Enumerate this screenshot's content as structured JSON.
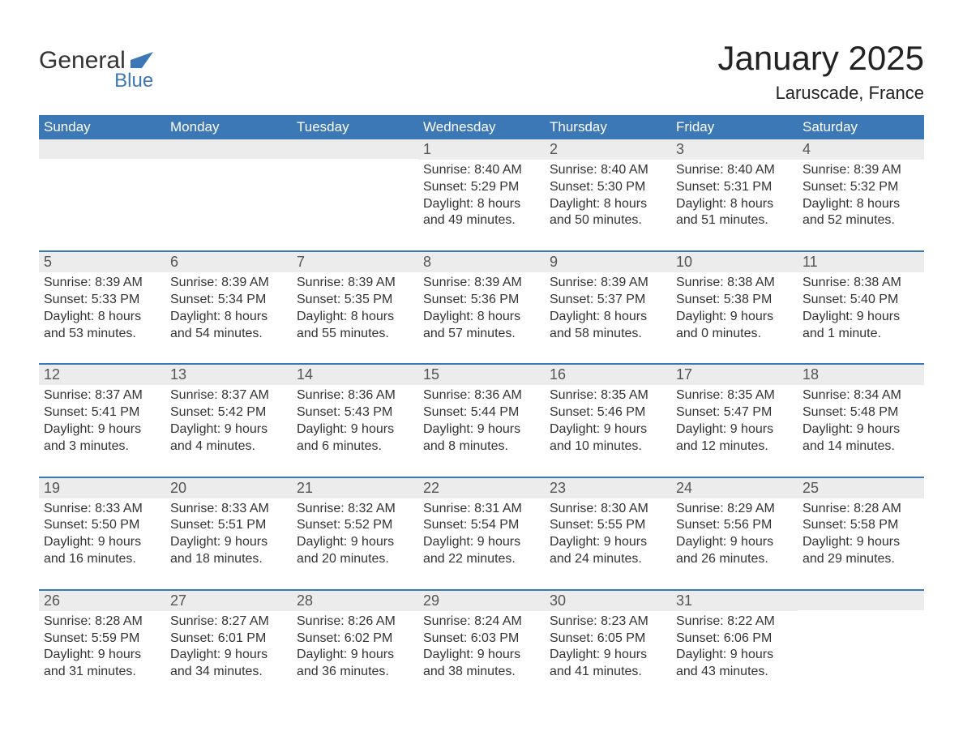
{
  "colors": {
    "brand_blue": "#3b78b5",
    "header_blue": "#3b78b5",
    "row_top_border": "#3b78b5",
    "day_strip_bg": "#ececec",
    "text_dark": "#333333",
    "page_bg": "#ffffff"
  },
  "typography": {
    "title_fontsize_pt": 32,
    "subtitle_fontsize_pt": 17,
    "weekday_fontsize_pt": 13,
    "daynum_fontsize_pt": 14,
    "body_fontsize_pt": 12,
    "font_family": "Arial"
  },
  "logo": {
    "word1": "General",
    "word2": "Blue",
    "icon_name": "flag-icon"
  },
  "header": {
    "title": "January 2025",
    "location": "Laruscade, France"
  },
  "calendar": {
    "type": "calendar-grid",
    "columns": 7,
    "rows": 5,
    "weekdays": [
      "Sunday",
      "Monday",
      "Tuesday",
      "Wednesday",
      "Thursday",
      "Friday",
      "Saturday"
    ],
    "weeks": [
      [
        {
          "day": "",
          "sunrise": "",
          "sunset": "",
          "daylight1": "",
          "daylight2": ""
        },
        {
          "day": "",
          "sunrise": "",
          "sunset": "",
          "daylight1": "",
          "daylight2": ""
        },
        {
          "day": "",
          "sunrise": "",
          "sunset": "",
          "daylight1": "",
          "daylight2": ""
        },
        {
          "day": "1",
          "sunrise": "Sunrise: 8:40 AM",
          "sunset": "Sunset: 5:29 PM",
          "daylight1": "Daylight: 8 hours",
          "daylight2": "and 49 minutes."
        },
        {
          "day": "2",
          "sunrise": "Sunrise: 8:40 AM",
          "sunset": "Sunset: 5:30 PM",
          "daylight1": "Daylight: 8 hours",
          "daylight2": "and 50 minutes."
        },
        {
          "day": "3",
          "sunrise": "Sunrise: 8:40 AM",
          "sunset": "Sunset: 5:31 PM",
          "daylight1": "Daylight: 8 hours",
          "daylight2": "and 51 minutes."
        },
        {
          "day": "4",
          "sunrise": "Sunrise: 8:39 AM",
          "sunset": "Sunset: 5:32 PM",
          "daylight1": "Daylight: 8 hours",
          "daylight2": "and 52 minutes."
        }
      ],
      [
        {
          "day": "5",
          "sunrise": "Sunrise: 8:39 AM",
          "sunset": "Sunset: 5:33 PM",
          "daylight1": "Daylight: 8 hours",
          "daylight2": "and 53 minutes."
        },
        {
          "day": "6",
          "sunrise": "Sunrise: 8:39 AM",
          "sunset": "Sunset: 5:34 PM",
          "daylight1": "Daylight: 8 hours",
          "daylight2": "and 54 minutes."
        },
        {
          "day": "7",
          "sunrise": "Sunrise: 8:39 AM",
          "sunset": "Sunset: 5:35 PM",
          "daylight1": "Daylight: 8 hours",
          "daylight2": "and 55 minutes."
        },
        {
          "day": "8",
          "sunrise": "Sunrise: 8:39 AM",
          "sunset": "Sunset: 5:36 PM",
          "daylight1": "Daylight: 8 hours",
          "daylight2": "and 57 minutes."
        },
        {
          "day": "9",
          "sunrise": "Sunrise: 8:39 AM",
          "sunset": "Sunset: 5:37 PM",
          "daylight1": "Daylight: 8 hours",
          "daylight2": "and 58 minutes."
        },
        {
          "day": "10",
          "sunrise": "Sunrise: 8:38 AM",
          "sunset": "Sunset: 5:38 PM",
          "daylight1": "Daylight: 9 hours",
          "daylight2": "and 0 minutes."
        },
        {
          "day": "11",
          "sunrise": "Sunrise: 8:38 AM",
          "sunset": "Sunset: 5:40 PM",
          "daylight1": "Daylight: 9 hours",
          "daylight2": "and 1 minute."
        }
      ],
      [
        {
          "day": "12",
          "sunrise": "Sunrise: 8:37 AM",
          "sunset": "Sunset: 5:41 PM",
          "daylight1": "Daylight: 9 hours",
          "daylight2": "and 3 minutes."
        },
        {
          "day": "13",
          "sunrise": "Sunrise: 8:37 AM",
          "sunset": "Sunset: 5:42 PM",
          "daylight1": "Daylight: 9 hours",
          "daylight2": "and 4 minutes."
        },
        {
          "day": "14",
          "sunrise": "Sunrise: 8:36 AM",
          "sunset": "Sunset: 5:43 PM",
          "daylight1": "Daylight: 9 hours",
          "daylight2": "and 6 minutes."
        },
        {
          "day": "15",
          "sunrise": "Sunrise: 8:36 AM",
          "sunset": "Sunset: 5:44 PM",
          "daylight1": "Daylight: 9 hours",
          "daylight2": "and 8 minutes."
        },
        {
          "day": "16",
          "sunrise": "Sunrise: 8:35 AM",
          "sunset": "Sunset: 5:46 PM",
          "daylight1": "Daylight: 9 hours",
          "daylight2": "and 10 minutes."
        },
        {
          "day": "17",
          "sunrise": "Sunrise: 8:35 AM",
          "sunset": "Sunset: 5:47 PM",
          "daylight1": "Daylight: 9 hours",
          "daylight2": "and 12 minutes."
        },
        {
          "day": "18",
          "sunrise": "Sunrise: 8:34 AM",
          "sunset": "Sunset: 5:48 PM",
          "daylight1": "Daylight: 9 hours",
          "daylight2": "and 14 minutes."
        }
      ],
      [
        {
          "day": "19",
          "sunrise": "Sunrise: 8:33 AM",
          "sunset": "Sunset: 5:50 PM",
          "daylight1": "Daylight: 9 hours",
          "daylight2": "and 16 minutes."
        },
        {
          "day": "20",
          "sunrise": "Sunrise: 8:33 AM",
          "sunset": "Sunset: 5:51 PM",
          "daylight1": "Daylight: 9 hours",
          "daylight2": "and 18 minutes."
        },
        {
          "day": "21",
          "sunrise": "Sunrise: 8:32 AM",
          "sunset": "Sunset: 5:52 PM",
          "daylight1": "Daylight: 9 hours",
          "daylight2": "and 20 minutes."
        },
        {
          "day": "22",
          "sunrise": "Sunrise: 8:31 AM",
          "sunset": "Sunset: 5:54 PM",
          "daylight1": "Daylight: 9 hours",
          "daylight2": "and 22 minutes."
        },
        {
          "day": "23",
          "sunrise": "Sunrise: 8:30 AM",
          "sunset": "Sunset: 5:55 PM",
          "daylight1": "Daylight: 9 hours",
          "daylight2": "and 24 minutes."
        },
        {
          "day": "24",
          "sunrise": "Sunrise: 8:29 AM",
          "sunset": "Sunset: 5:56 PM",
          "daylight1": "Daylight: 9 hours",
          "daylight2": "and 26 minutes."
        },
        {
          "day": "25",
          "sunrise": "Sunrise: 8:28 AM",
          "sunset": "Sunset: 5:58 PM",
          "daylight1": "Daylight: 9 hours",
          "daylight2": "and 29 minutes."
        }
      ],
      [
        {
          "day": "26",
          "sunrise": "Sunrise: 8:28 AM",
          "sunset": "Sunset: 5:59 PM",
          "daylight1": "Daylight: 9 hours",
          "daylight2": "and 31 minutes."
        },
        {
          "day": "27",
          "sunrise": "Sunrise: 8:27 AM",
          "sunset": "Sunset: 6:01 PM",
          "daylight1": "Daylight: 9 hours",
          "daylight2": "and 34 minutes."
        },
        {
          "day": "28",
          "sunrise": "Sunrise: 8:26 AM",
          "sunset": "Sunset: 6:02 PM",
          "daylight1": "Daylight: 9 hours",
          "daylight2": "and 36 minutes."
        },
        {
          "day": "29",
          "sunrise": "Sunrise: 8:24 AM",
          "sunset": "Sunset: 6:03 PM",
          "daylight1": "Daylight: 9 hours",
          "daylight2": "and 38 minutes."
        },
        {
          "day": "30",
          "sunrise": "Sunrise: 8:23 AM",
          "sunset": "Sunset: 6:05 PM",
          "daylight1": "Daylight: 9 hours",
          "daylight2": "and 41 minutes."
        },
        {
          "day": "31",
          "sunrise": "Sunrise: 8:22 AM",
          "sunset": "Sunset: 6:06 PM",
          "daylight1": "Daylight: 9 hours",
          "daylight2": "and 43 minutes."
        },
        {
          "day": "",
          "sunrise": "",
          "sunset": "",
          "daylight1": "",
          "daylight2": ""
        }
      ]
    ]
  }
}
